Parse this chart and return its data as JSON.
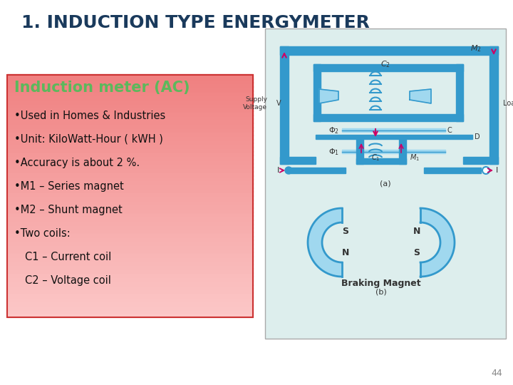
{
  "title": "1. INDUCTION TYPE ENERGYMETER",
  "title_color": "#1a3a5c",
  "title_fontsize": 18,
  "bg_color": "#ffffff",
  "slide_number": "44",
  "box_heading": "Induction meter (AC)",
  "box_heading_color": "#5cb85c",
  "box_border_color": "#cc3333",
  "bullet_color": "#111111",
  "bullets": [
    "•Used in Homes & Industries",
    "•Unit: KiloWatt-Hour ( kWH )",
    "•Accuracy is about 2 %.",
    "•M1 – Series magnet",
    "•M2 – Shunt magnet",
    "•Two coils:",
    "C1 – Current coil",
    "C2 – Voltage coil"
  ],
  "diagram_bg": "#ddeeed",
  "cyan": "#3399cc",
  "pink": "#cc0066"
}
